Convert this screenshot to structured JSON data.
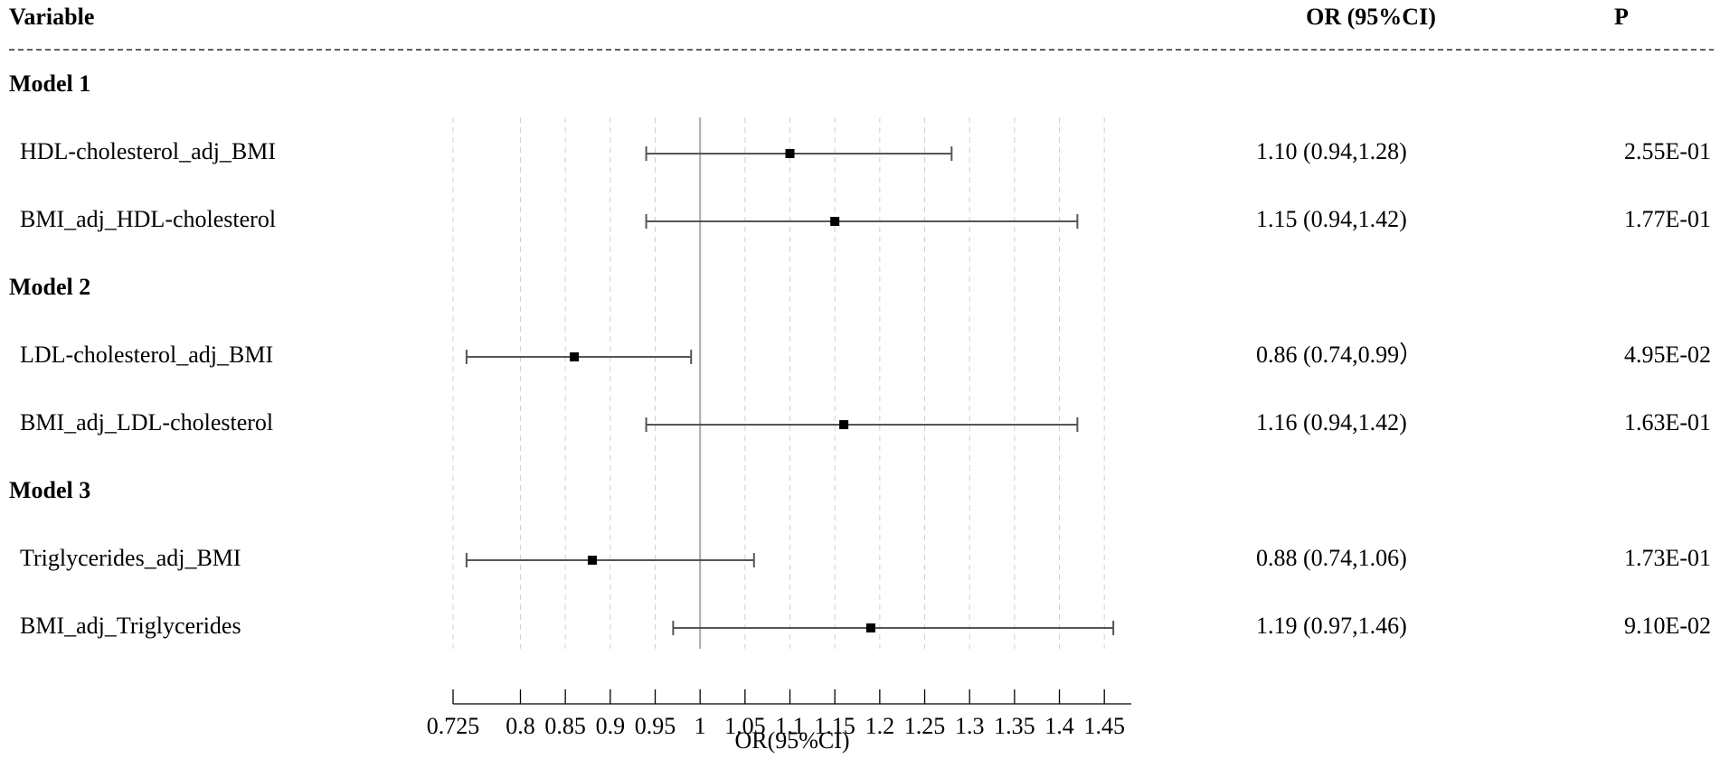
{
  "chart_data": {
    "type": "forest",
    "columns": [
      "Variable",
      "OR (95%CI)",
      "P"
    ],
    "xlabel": "OR(95%CI)",
    "xlim": [
      0.725,
      1.48
    ],
    "xticks": [
      0.725,
      0.8,
      0.85,
      0.9,
      0.95,
      1,
      1.05,
      1.1,
      1.15,
      1.2,
      1.25,
      1.3,
      1.35,
      1.4,
      1.45
    ],
    "ref_line": 1,
    "grid": true,
    "color": "#000000",
    "whisker_color": "#555555",
    "groups": [
      {
        "name": "Model 1",
        "categories": [
          "HDL-cholesterol_adj_BMI",
          "BMI_adj_HDL-cholesterol"
        ],
        "values": [
          1.1,
          1.15
        ],
        "lower": [
          0.94,
          0.94
        ],
        "upper": [
          1.28,
          1.42
        ],
        "or_text": [
          "1.10 (0.94,1.28)",
          "1.15 (0.94,1.42)"
        ],
        "p_text": [
          "2.55E-01",
          "1.77E-01"
        ]
      },
      {
        "name": "Model 2",
        "categories": [
          "LDL-cholesterol_adj_BMI",
          "BMI_adj_LDL-cholesterol"
        ],
        "values": [
          0.86,
          1.16
        ],
        "lower": [
          0.74,
          0.94
        ],
        "upper": [
          0.99,
          1.42
        ],
        "or_text": [
          "0.86 (0.74,0.99）",
          "1.16 (0.94,1.42)"
        ],
        "p_text": [
          "4.95E-02",
          "1.63E-01"
        ]
      },
      {
        "name": "Model 3",
        "categories": [
          "Triglycerides_adj_BMI",
          "BMI_adj_Triglycerides"
        ],
        "values": [
          0.88,
          1.19
        ],
        "lower": [
          0.74,
          0.97
        ],
        "upper": [
          1.06,
          1.46
        ],
        "or_text": [
          "0.88 (0.74,1.06)",
          "1.19 (0.97,1.46)"
        ],
        "p_text": [
          "1.73E-01",
          "9.10E-02"
        ]
      }
    ]
  }
}
